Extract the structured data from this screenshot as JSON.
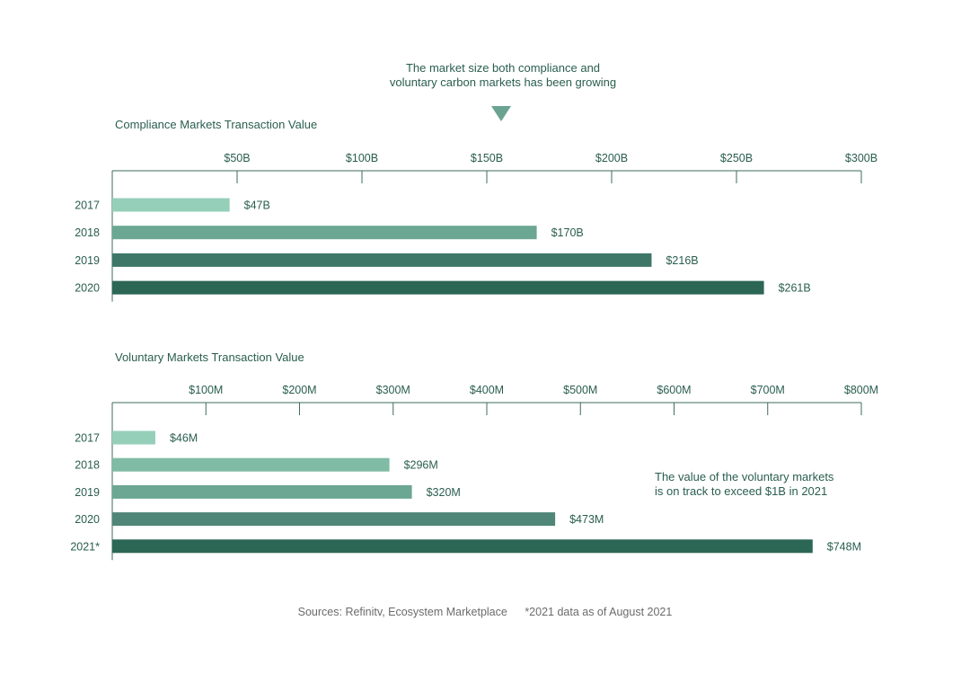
{
  "headline": {
    "line1": "The market size both compliance and",
    "line2": "voluntary carbon markets has been growing"
  },
  "footer": {
    "sources": "Sources: Refinitv, Ecosystem Marketplace",
    "footnote": "*2021 data as of August 2021"
  },
  "annotation": {
    "line1": "The value of the voluntary markets",
    "line2": "is on track to exceed $1B in 2021"
  },
  "colors": {
    "text": "#2a5e4f",
    "axis": "#3d6b5e",
    "arrow": "#6aa391",
    "bar_shades": [
      "#95cfba",
      "#7fbba5",
      "#6ba792",
      "#4f8677",
      "#2c6655"
    ]
  },
  "chart_data": [
    {
      "type": "bar",
      "orientation": "horizontal",
      "title": "Compliance Markets Transaction Value",
      "categories": [
        "2017",
        "2018",
        "2019",
        "2020"
      ],
      "values": [
        47,
        170,
        216,
        261
      ],
      "value_labels": [
        "$47B",
        "$170B",
        "$216B",
        "$261B"
      ],
      "unit": "billion USD",
      "xlim": [
        0,
        300
      ],
      "ticks": [
        50,
        100,
        150,
        200,
        250,
        300
      ],
      "tick_labels": [
        "$50B",
        "$100B",
        "$150B",
        "$200B",
        "$250B",
        "$300B"
      ],
      "axis_position": "top",
      "grid": false,
      "legend": "none",
      "bar_colors": [
        "#95cfba",
        "#6ba792",
        "#3e7767",
        "#2c6655"
      ]
    },
    {
      "type": "bar",
      "orientation": "horizontal",
      "title": "Voluntary Markets Transaction Value",
      "categories": [
        "2017",
        "2018",
        "2019",
        "2020",
        "2021*"
      ],
      "values": [
        46,
        296,
        320,
        473,
        748
      ],
      "value_labels": [
        "$46M",
        "$296M",
        "$320M",
        "$473M",
        "$748M"
      ],
      "unit": "million USD",
      "xlim": [
        0,
        800
      ],
      "ticks": [
        100,
        200,
        300,
        400,
        500,
        600,
        700,
        800
      ],
      "tick_labels": [
        "$100M",
        "$200M",
        "$300M",
        "$400M",
        "$500M",
        "$600M",
        "$700M",
        "$800M"
      ],
      "axis_position": "top",
      "grid": false,
      "legend": "none",
      "bar_colors": [
        "#95cfba",
        "#7fbba5",
        "#6ba792",
        "#4f8677",
        "#2c6655"
      ]
    }
  ]
}
